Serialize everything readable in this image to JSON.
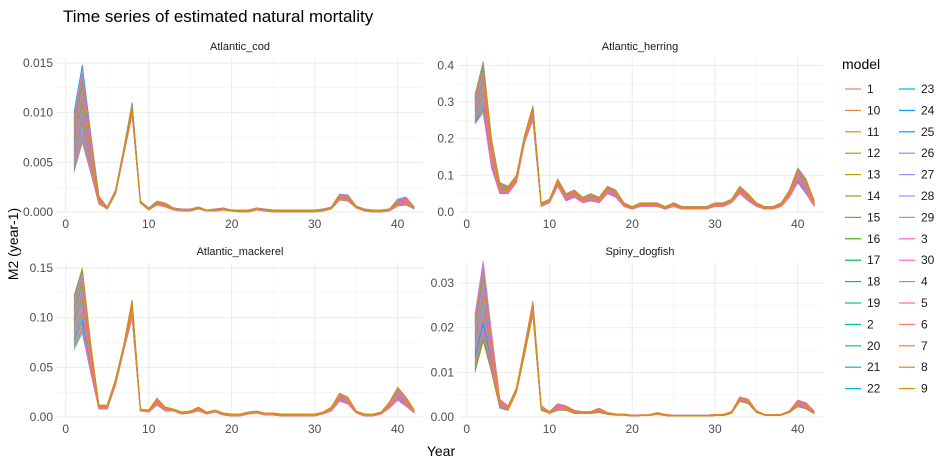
{
  "chart_data": {
    "type": "line",
    "title": "Time series of estimated natural mortality",
    "xlabel": "Year",
    "ylabel": "M2 (year-1)",
    "grid": true,
    "legend": {
      "title": "model",
      "placement": "right",
      "entries": [
        "1",
        "10",
        "11",
        "12",
        "13",
        "14",
        "15",
        "16",
        "17",
        "18",
        "19",
        "2",
        "20",
        "21",
        "22",
        "23",
        "24",
        "25",
        "26",
        "27",
        "28",
        "29",
        "3",
        "30",
        "4",
        "5",
        "6",
        "7",
        "8",
        "9"
      ],
      "colors": [
        "#F8766D",
        "#EC8239",
        "#DB8E00",
        "#C79800",
        "#AFA100",
        "#93AA00",
        "#6FB000",
        "#39B600",
        "#00BB4E",
        "#00BE6D",
        "#00C086",
        "#00C19C",
        "#00C0B0",
        "#00BDC2",
        "#00B8D3",
        "#00B2E2",
        "#00A9EF",
        "#00A0F9",
        "#7F96FF",
        "#A58AFF",
        "#C77CFF",
        "#E06FF5",
        "#F763E0",
        "#FF61CA",
        "#FF63B4",
        "#FF6C91",
        "#F8766D",
        "#EC8239",
        "#DB8E00",
        "#C79800"
      ]
    },
    "x": [
      1,
      2,
      3,
      4,
      5,
      6,
      7,
      8,
      9,
      10,
      11,
      12,
      13,
      14,
      15,
      16,
      17,
      18,
      19,
      20,
      21,
      22,
      23,
      24,
      25,
      26,
      27,
      28,
      29,
      30,
      31,
      32,
      33,
      34,
      35,
      36,
      37,
      38,
      39,
      40,
      41,
      42
    ],
    "panels": [
      {
        "title": "Atlantic_cod",
        "ylim": [
          0,
          0.0155
        ],
        "yticks": [
          0.0,
          0.005,
          0.01,
          0.015
        ],
        "yticklabels": [
          "0.000",
          "0.005",
          "0.010",
          "0.015"
        ],
        "xticks": [
          0,
          10,
          20,
          30,
          40
        ],
        "xticklabels": [
          "0",
          "10",
          "20",
          "30",
          "40"
        ],
        "mean": [
          0.007,
          0.0108,
          0.006,
          0.0012,
          0.0004,
          0.002,
          0.006,
          0.0102,
          0.001,
          0.0003,
          0.0009,
          0.0007,
          0.0003,
          0.0002,
          0.0002,
          0.0004,
          0.0001,
          0.0002,
          0.0003,
          0.0001,
          0.0001,
          0.0001,
          0.0003,
          0.0002,
          0.0001,
          0.0001,
          0.0001,
          0.0001,
          0.0001,
          0.0001,
          0.0002,
          0.0004,
          0.0015,
          0.0014,
          0.0005,
          0.0002,
          0.0001,
          0.0001,
          0.0002,
          0.0009,
          0.0011,
          0.0004
        ],
        "min": [
          0.004,
          0.007,
          0.004,
          0.0008,
          0.0003,
          0.0018,
          0.0058,
          0.0098,
          0.0009,
          0.0002,
          0.0007,
          0.0005,
          0.0002,
          0.0001,
          0.0001,
          0.0003,
          0.0001,
          0.0001,
          0.0002,
          0.0001,
          0.0,
          0.0,
          0.0002,
          0.0001,
          0.0,
          0.0,
          0.0,
          0.0,
          0.0,
          0.0,
          0.0001,
          0.0003,
          0.0012,
          0.0011,
          0.0004,
          0.0001,
          0.0,
          0.0,
          0.0001,
          0.0006,
          0.0007,
          0.0003
        ],
        "max": [
          0.01,
          0.0148,
          0.008,
          0.0016,
          0.0005,
          0.0022,
          0.0064,
          0.011,
          0.0011,
          0.0004,
          0.0011,
          0.0009,
          0.0004,
          0.0003,
          0.0003,
          0.0005,
          0.0002,
          0.0003,
          0.0004,
          0.0002,
          0.0002,
          0.0002,
          0.0004,
          0.0003,
          0.0002,
          0.0002,
          0.0002,
          0.0002,
          0.0002,
          0.0002,
          0.0003,
          0.0005,
          0.0018,
          0.0017,
          0.0006,
          0.0003,
          0.0002,
          0.0002,
          0.0003,
          0.0013,
          0.0015,
          0.0005
        ]
      },
      {
        "title": "Atlantic_herring",
        "ylim": [
          0,
          0.42
        ],
        "yticks": [
          0.0,
          0.1,
          0.2,
          0.3,
          0.4
        ],
        "yticklabels": [
          "0.0",
          "0.1",
          "0.2",
          "0.3",
          "0.4"
        ],
        "xticks": [
          0,
          10,
          20,
          30,
          40
        ],
        "xticklabels": [
          "0",
          "10",
          "20",
          "30",
          "40"
        ],
        "mean": [
          0.28,
          0.34,
          0.16,
          0.06,
          0.06,
          0.09,
          0.2,
          0.27,
          0.02,
          0.03,
          0.08,
          0.04,
          0.05,
          0.03,
          0.04,
          0.03,
          0.06,
          0.05,
          0.02,
          0.01,
          0.02,
          0.02,
          0.02,
          0.01,
          0.02,
          0.01,
          0.01,
          0.01,
          0.01,
          0.02,
          0.02,
          0.03,
          0.06,
          0.04,
          0.02,
          0.01,
          0.01,
          0.02,
          0.05,
          0.1,
          0.07,
          0.02
        ],
        "min": [
          0.24,
          0.27,
          0.12,
          0.05,
          0.05,
          0.08,
          0.19,
          0.25,
          0.015,
          0.025,
          0.07,
          0.03,
          0.04,
          0.025,
          0.03,
          0.025,
          0.05,
          0.04,
          0.015,
          0.008,
          0.015,
          0.015,
          0.015,
          0.008,
          0.015,
          0.008,
          0.008,
          0.008,
          0.008,
          0.015,
          0.015,
          0.025,
          0.05,
          0.03,
          0.015,
          0.008,
          0.008,
          0.015,
          0.04,
          0.08,
          0.05,
          0.015
        ],
        "max": [
          0.32,
          0.41,
          0.2,
          0.08,
          0.07,
          0.1,
          0.21,
          0.29,
          0.025,
          0.035,
          0.09,
          0.05,
          0.06,
          0.04,
          0.05,
          0.04,
          0.07,
          0.06,
          0.025,
          0.015,
          0.025,
          0.025,
          0.025,
          0.015,
          0.025,
          0.015,
          0.015,
          0.015,
          0.015,
          0.025,
          0.025,
          0.035,
          0.07,
          0.05,
          0.025,
          0.015,
          0.015,
          0.025,
          0.06,
          0.12,
          0.09,
          0.03
        ]
      },
      {
        "title": "Atlantic_mackerel",
        "ylim": [
          0,
          0.155
        ],
        "yticks": [
          0.0,
          0.05,
          0.1,
          0.15
        ],
        "yticklabels": [
          "0.00",
          "0.05",
          "0.10",
          "0.15"
        ],
        "xticks": [
          0,
          10,
          20,
          30,
          40
        ],
        "xticklabels": [
          "0",
          "10",
          "20",
          "30",
          "40"
        ],
        "mean": [
          0.095,
          0.118,
          0.06,
          0.01,
          0.01,
          0.035,
          0.07,
          0.105,
          0.007,
          0.006,
          0.015,
          0.008,
          0.007,
          0.004,
          0.005,
          0.008,
          0.004,
          0.006,
          0.003,
          0.002,
          0.002,
          0.004,
          0.005,
          0.003,
          0.003,
          0.002,
          0.002,
          0.002,
          0.002,
          0.002,
          0.004,
          0.008,
          0.02,
          0.016,
          0.005,
          0.002,
          0.002,
          0.004,
          0.012,
          0.022,
          0.015,
          0.005
        ],
        "min": [
          0.068,
          0.085,
          0.045,
          0.008,
          0.008,
          0.032,
          0.067,
          0.1,
          0.006,
          0.005,
          0.012,
          0.006,
          0.006,
          0.003,
          0.004,
          0.006,
          0.003,
          0.005,
          0.002,
          0.001,
          0.001,
          0.003,
          0.004,
          0.002,
          0.002,
          0.001,
          0.001,
          0.001,
          0.001,
          0.001,
          0.003,
          0.006,
          0.016,
          0.013,
          0.004,
          0.001,
          0.001,
          0.003,
          0.009,
          0.017,
          0.011,
          0.004
        ],
        "max": [
          0.122,
          0.15,
          0.075,
          0.012,
          0.012,
          0.038,
          0.073,
          0.118,
          0.008,
          0.007,
          0.019,
          0.01,
          0.008,
          0.005,
          0.006,
          0.01,
          0.005,
          0.007,
          0.004,
          0.003,
          0.003,
          0.005,
          0.006,
          0.004,
          0.004,
          0.003,
          0.003,
          0.003,
          0.003,
          0.003,
          0.005,
          0.01,
          0.024,
          0.02,
          0.006,
          0.003,
          0.003,
          0.005,
          0.015,
          0.03,
          0.02,
          0.007
        ]
      },
      {
        "title": "Spiny_dogfish",
        "ylim": [
          0,
          0.0345
        ],
        "yticks": [
          0.0,
          0.01,
          0.02,
          0.03
        ],
        "yticklabels": [
          "0.00",
          "0.01",
          "0.02",
          "0.03"
        ],
        "xticks": [
          0,
          10,
          20,
          30,
          40
        ],
        "xticklabels": [
          "0",
          "10",
          "20",
          "30",
          "40"
        ],
        "mean": [
          0.016,
          0.024,
          0.014,
          0.003,
          0.002,
          0.006,
          0.015,
          0.024,
          0.002,
          0.001,
          0.002,
          0.002,
          0.001,
          0.001,
          0.001,
          0.0015,
          0.0008,
          0.0005,
          0.0005,
          0.0003,
          0.0004,
          0.0004,
          0.0008,
          0.0004,
          0.0003,
          0.0003,
          0.0003,
          0.0003,
          0.0003,
          0.0004,
          0.0004,
          0.001,
          0.004,
          0.0035,
          0.0012,
          0.0005,
          0.0004,
          0.0005,
          0.0012,
          0.003,
          0.0025,
          0.001
        ],
        "min": [
          0.01,
          0.017,
          0.01,
          0.002,
          0.0015,
          0.0055,
          0.014,
          0.023,
          0.0015,
          0.0008,
          0.0015,
          0.0015,
          0.0008,
          0.0008,
          0.0008,
          0.001,
          0.0006,
          0.0004,
          0.0004,
          0.0002,
          0.0003,
          0.0003,
          0.0006,
          0.0003,
          0.0002,
          0.0002,
          0.0002,
          0.0002,
          0.0002,
          0.0003,
          0.0003,
          0.0008,
          0.0035,
          0.003,
          0.001,
          0.0004,
          0.0003,
          0.0004,
          0.001,
          0.0023,
          0.0018,
          0.0007
        ],
        "max": [
          0.023,
          0.035,
          0.019,
          0.004,
          0.0025,
          0.0065,
          0.016,
          0.026,
          0.0025,
          0.0012,
          0.003,
          0.0025,
          0.0015,
          0.0012,
          0.0012,
          0.002,
          0.001,
          0.0007,
          0.0007,
          0.0004,
          0.0005,
          0.0005,
          0.001,
          0.0006,
          0.0004,
          0.0004,
          0.0004,
          0.0004,
          0.0004,
          0.0006,
          0.0006,
          0.0012,
          0.0045,
          0.004,
          0.0014,
          0.0006,
          0.0005,
          0.0006,
          0.0014,
          0.0038,
          0.0032,
          0.0013
        ]
      }
    ]
  }
}
